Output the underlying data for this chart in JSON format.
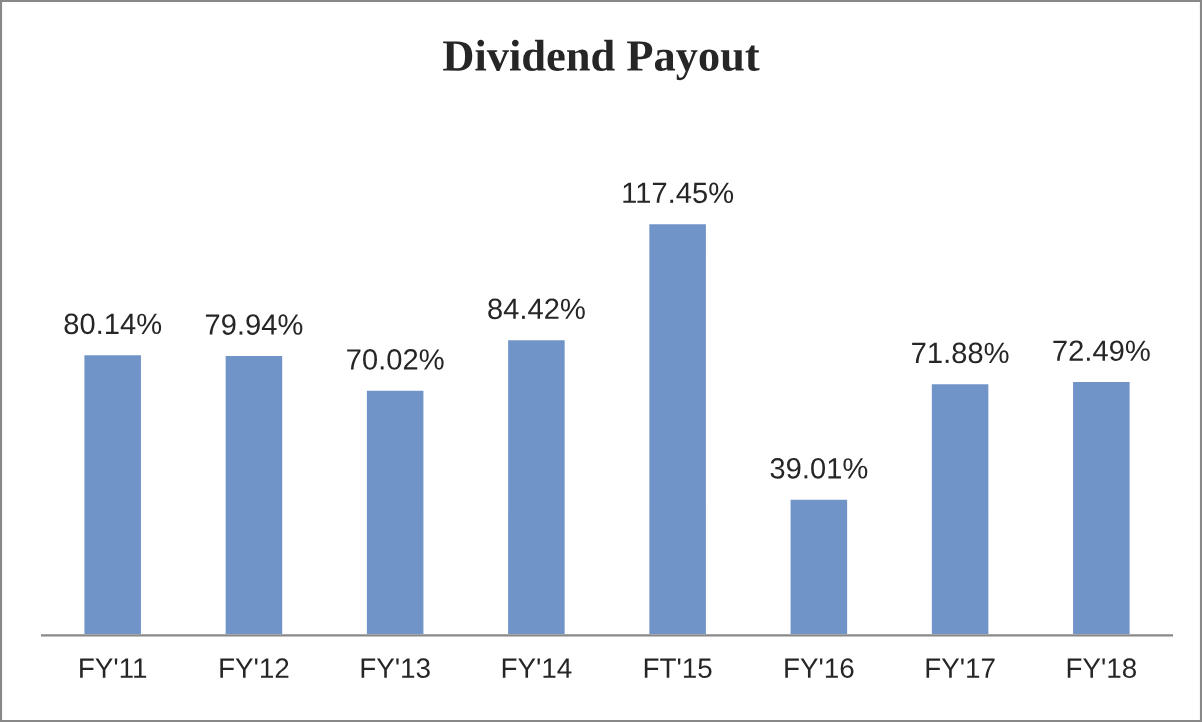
{
  "chart_data": {
    "type": "bar",
    "title": "Dividend Payout",
    "categories": [
      "FY'11",
      "FY'12",
      "FY'13",
      "FY'14",
      "FT'15",
      "FY'16",
      "FY'17",
      "FY'18"
    ],
    "values": [
      80.14,
      79.94,
      70.02,
      84.42,
      117.45,
      39.01,
      71.88,
      72.49
    ],
    "value_labels": [
      "80.14%",
      "79.94%",
      "70.02%",
      "84.42%",
      "117.45%",
      "39.01%",
      "71.88%",
      "72.49%"
    ],
    "color": "#7094c8",
    "grid": false,
    "legend": false
  }
}
